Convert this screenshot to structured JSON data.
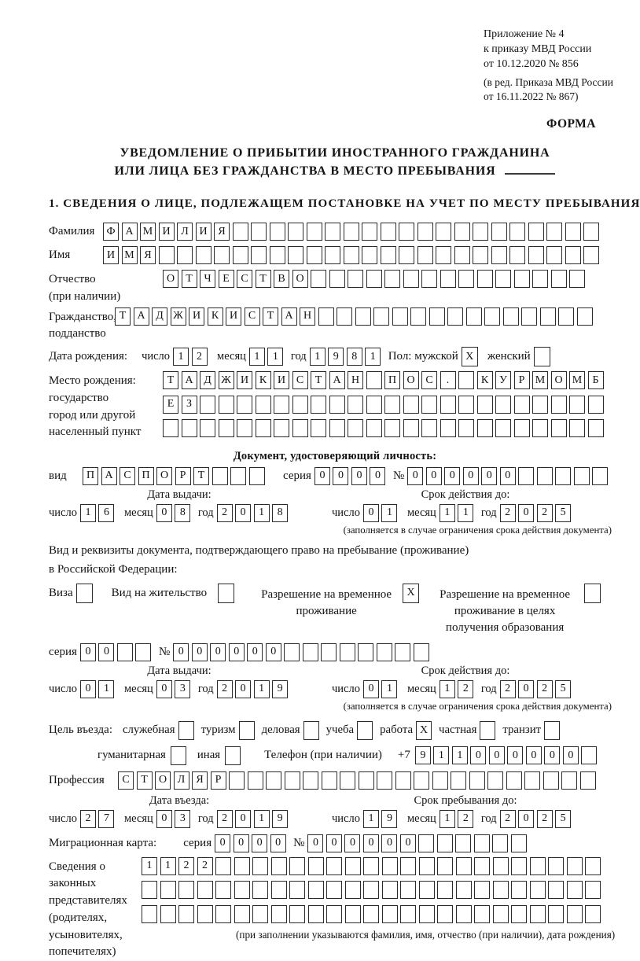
{
  "marks": {
    "checked": "X"
  },
  "annex": {
    "lines": [
      "Приложение № 4",
      "к приказу МВД России",
      "от 10.12.2020 № 856"
    ],
    "amendment_lines": [
      "(в ред. Приказа МВД России",
      "от 16.11.2022 № 867)"
    ],
    "form_label": "ФОРМА"
  },
  "title": {
    "line1": "УВЕДОМЛЕНИЕ О ПРИБЫТИИ ИНОСТРАННОГО ГРАЖДАНИНА",
    "line2": "ИЛИ ЛИЦА БЕЗ ГРАЖДАНСТВА В МЕСТО ПРЕБЫВАНИЯ"
  },
  "section1": {
    "title": "1. СВЕДЕНИЯ О ЛИЦЕ, ПОДЛЕЖАЩЕМ ПОСТАНОВКЕ НА УЧЕТ ПО МЕСТУ ПРЕБЫВАНИЯ"
  },
  "date_labels": {
    "day": "число",
    "month": "месяц",
    "year": "год"
  },
  "surname": {
    "label": "Фамилия",
    "cells": {
      "v": "ФАМИЛИЯ",
      "n": 27
    }
  },
  "name": {
    "label": "Имя",
    "cells": {
      "v": "ИМЯ",
      "n": 27
    }
  },
  "patronymic": {
    "label": "Отчество",
    "sublabel": "(при наличии)",
    "cells": {
      "v": "ОТЧЕСТВО",
      "n": 23
    }
  },
  "citizenship": {
    "label": "Гражданство,",
    "sublabel": "подданство",
    "cells": {
      "v": "ТАДЖИКИСТАН",
      "n": 26
    }
  },
  "birth": {
    "label": "Дата рождения:",
    "day": {
      "v": "12",
      "n": 2
    },
    "month": {
      "v": "11",
      "n": 2
    },
    "year": {
      "v": "1981",
      "n": 4
    },
    "sex_male_label": "Пол: мужской",
    "sex_male": true,
    "sex_female_label": "женский",
    "sex_female": false
  },
  "birth_place": {
    "label_lines": [
      "Место рождения:",
      "государство",
      "город или другой",
      "населенный пункт"
    ],
    "rows": [
      {
        "v": "ТАДЖИКИСТАН ПОС. КУРМОМБ",
        "n": 24
      },
      {
        "v": "ЕЗ",
        "n": 24
      },
      {
        "v": "",
        "n": 24
      }
    ]
  },
  "identity_doc": {
    "header": "Документ, удостоверяющий личность:",
    "kind_label": "вид",
    "kind": {
      "v": "ПАСПОРТ",
      "n": 10
    },
    "series_label": "серия",
    "series": {
      "v": "0000",
      "n": 4
    },
    "number_label": "№",
    "number": {
      "v": "000000",
      "n": 11
    },
    "issue_header": "Дата выдачи:",
    "issue": {
      "day": {
        "v": "16",
        "n": 2
      },
      "month": {
        "v": "08",
        "n": 2
      },
      "year": {
        "v": "2018",
        "n": 4
      }
    },
    "expiry_header": "Срок действия до:",
    "expiry": {
      "day": {
        "v": "01",
        "n": 2
      },
      "month": {
        "v": "11",
        "n": 2
      },
      "year": {
        "v": "2025",
        "n": 4
      }
    },
    "note": "(заполняется в случае ограничения срока действия документа)"
  },
  "residence_doc": {
    "intro_line1": "Вид и реквизиты документа, подтверждающего право на пребывание (проживание)",
    "intro_line2": "в Российской Федерации:",
    "options": [
      {
        "label": "Виза",
        "checked": false
      },
      {
        "label": "Вид на жительство",
        "checked": false
      },
      {
        "label": "Разрешение на временное проживание",
        "checked": true
      },
      {
        "label": "Разрешение на временное проживание в целях получения образования",
        "checked": false
      }
    ],
    "series_label": "серия",
    "series": {
      "v": "00",
      "n": 4
    },
    "number_label": "№",
    "number": {
      "v": "000000",
      "n": 14
    },
    "issue_header": "Дата выдачи:",
    "issue": {
      "day": {
        "v": "01",
        "n": 2
      },
      "month": {
        "v": "03",
        "n": 2
      },
      "year": {
        "v": "2019",
        "n": 4
      }
    },
    "expiry_header": "Срок действия до:",
    "expiry": {
      "day": {
        "v": "01",
        "n": 2
      },
      "month": {
        "v": "12",
        "n": 2
      },
      "year": {
        "v": "2025",
        "n": 4
      }
    },
    "note": "(заполняется в случае ограничения срока действия документа)"
  },
  "purpose": {
    "label": "Цель въезда:",
    "options": [
      {
        "label": "служебная",
        "checked": false
      },
      {
        "label": "туризм",
        "checked": false
      },
      {
        "label": "деловая",
        "checked": false
      },
      {
        "label": "учеба",
        "checked": false
      },
      {
        "label": "работа",
        "checked": true
      },
      {
        "label": "частная",
        "checked": false
      },
      {
        "label": "транзит",
        "checked": false
      }
    ],
    "options2": [
      {
        "label": "гуманитарная",
        "checked": false
      },
      {
        "label": "иная",
        "checked": false
      }
    ],
    "phone_label": "Телефон (при наличии)",
    "phone_prefix": "+7",
    "phone": {
      "v": "911000000",
      "n": 10
    }
  },
  "profession": {
    "label": "Профессия",
    "cells": {
      "v": "СТОЛЯР",
      "n": 26
    }
  },
  "entry": {
    "issue_header": "Дата въезда:",
    "issue": {
      "day": {
        "v": "27",
        "n": 2
      },
      "month": {
        "v": "03",
        "n": 2
      },
      "year": {
        "v": "2019",
        "n": 4
      }
    },
    "stay_header": "Срок пребывания до:",
    "stay": {
      "day": {
        "v": "19",
        "n": 2
      },
      "month": {
        "v": "12",
        "n": 2
      },
      "year": {
        "v": "2025",
        "n": 4
      }
    }
  },
  "migration_card": {
    "label": "Миграционная карта:",
    "series_label": "серия",
    "series": {
      "v": "0000",
      "n": 4
    },
    "number_label": "№",
    "number": {
      "v": "000000",
      "n": 12
    }
  },
  "representatives": {
    "label_lines": [
      "Сведения о",
      "законных",
      "представителях",
      "(родителях,",
      "усыновителях,",
      "попечителях)"
    ],
    "rows": [
      {
        "v": "1122",
        "n": 25
      },
      {
        "v": "",
        "n": 25
      },
      {
        "v": "",
        "n": 25
      }
    ],
    "note": "(при заполнении указываются фамилия, имя, отчество (при наличии), дата рождения)"
  }
}
